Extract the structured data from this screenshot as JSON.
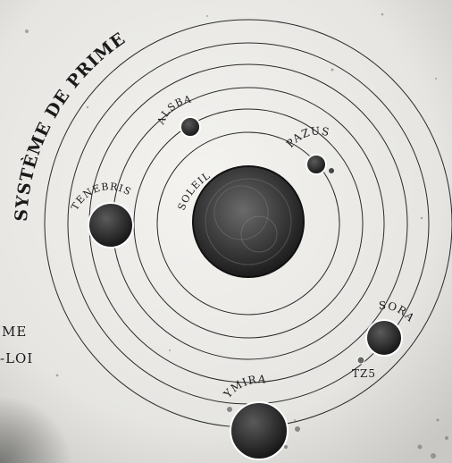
{
  "diagram": {
    "title": "SYSTÈME DE PRIME",
    "sun": {
      "label": "SOLEIL"
    },
    "bodies": [
      {
        "label": "ALSBA"
      },
      {
        "label": "PAZUS"
      },
      {
        "label": "TENEBRIS"
      },
      {
        "label": "SORA"
      },
      {
        "label": "TZ5"
      },
      {
        "label": "YMIRA"
      }
    ],
    "side_text": [
      "ME",
      "-LOI"
    ]
  },
  "colors": {
    "paper": "#ecebe8",
    "ink": "#1a1a1a"
  }
}
